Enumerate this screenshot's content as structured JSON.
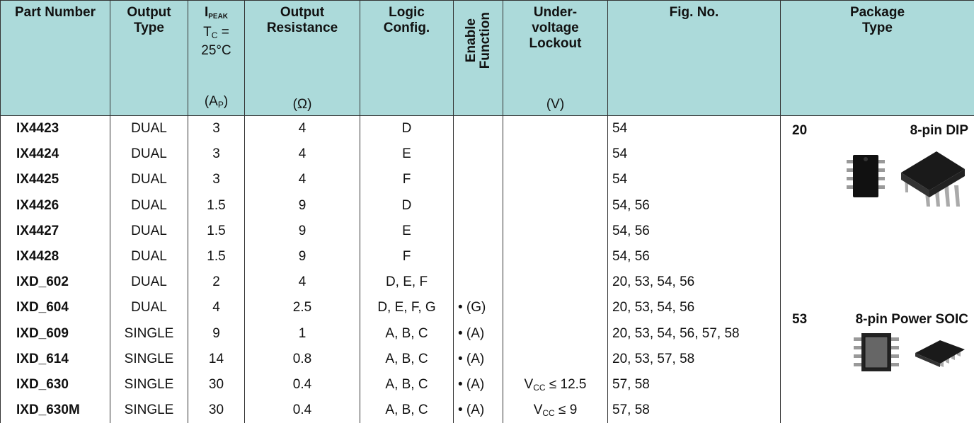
{
  "table": {
    "header": {
      "part_number": [
        "Part Number"
      ],
      "output_type": [
        "Output",
        "Type"
      ],
      "i_peak": {
        "symbol": "I",
        "symbol_sub": "PEAK",
        "temp": "T",
        "temp_sub": "C",
        "temp_rest": "=",
        "temp_value": "25°C",
        "unit": "(A",
        "unit_sub": "P",
        "unit_close": ")"
      },
      "output_resistance": [
        "Output",
        "Resistance"
      ],
      "output_resistance_unit": "(Ω)",
      "logic_config": [
        "Logic",
        "Config."
      ],
      "enable_function": [
        "Enable",
        "Function"
      ],
      "undervoltage_lockout": [
        "Under-",
        "voltage",
        "Lockout"
      ],
      "undervoltage_unit": "(V)",
      "fig_no": [
        "Fig. No."
      ],
      "package_type": [
        "Package",
        "Type"
      ]
    },
    "rows": [
      [
        "IX4423",
        "DUAL",
        3,
        4,
        "D",
        null,
        null,
        "54"
      ],
      [
        "IX4424",
        "DUAL",
        3,
        4,
        "E",
        null,
        null,
        "54"
      ],
      [
        "IX4425",
        "DUAL",
        3,
        4,
        "F",
        null,
        null,
        "54"
      ],
      [
        "IX4426",
        "DUAL",
        1.5,
        9,
        "D",
        null,
        null,
        "54, 56"
      ],
      [
        "IX4427",
        "DUAL",
        1.5,
        9,
        "E",
        null,
        null,
        "54, 56"
      ],
      [
        "IX4428",
        "DUAL",
        1.5,
        9,
        "F",
        null,
        null,
        "54, 56"
      ],
      [
        "IXD_602",
        "DUAL",
        2,
        4,
        "D, E, F",
        null,
        null,
        "20, 53, 54, 56"
      ],
      [
        "IXD_604",
        "DUAL",
        4,
        2.5,
        "D, E, F, G",
        "• (G)",
        null,
        "20, 53, 54, 56"
      ],
      [
        "IXD_609",
        "SINGLE",
        9,
        1,
        "A, B, C",
        "• (A)",
        null,
        "20, 53, 54, 56, 57, 58"
      ],
      [
        "IXD_614",
        "SINGLE",
        14,
        0.8,
        "A, B, C",
        "• (A)",
        null,
        "20, 53, 57, 58"
      ],
      [
        "IXD_630",
        "SINGLE",
        30,
        0.4,
        "A, B, C",
        "• (A)",
        {
          "base": "V",
          "sub": "CC",
          "rest": "≤ 12.5"
        },
        "57, 58"
      ],
      [
        "IXD_630M",
        "SINGLE",
        30,
        0.4,
        "A, B, C",
        "• (A)",
        {
          "base": "V",
          "sub": "CC",
          "rest": "≤ 9"
        },
        "57, 58"
      ]
    ],
    "packages": [
      {
        "fig": "20",
        "name": "8-pin DIP"
      },
      {
        "fig": "53",
        "name": "8-pin Power SOIC"
      }
    ]
  }
}
